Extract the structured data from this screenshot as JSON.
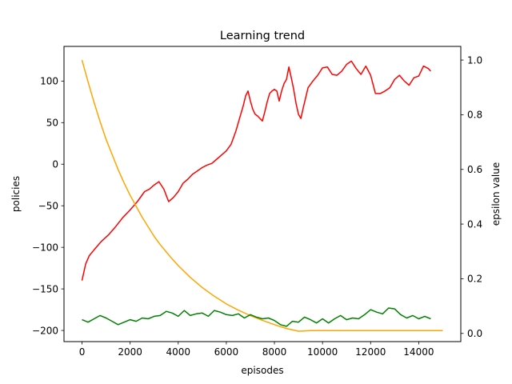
{
  "chart_data": {
    "type": "line",
    "title": "Learning trend",
    "xlabel": "episodes",
    "ylabel": "policies",
    "y2label": "epsilon value",
    "xlim": [
      -750,
      15750
    ],
    "ylim": [
      -213.4,
      141.7
    ],
    "y2lim": [
      -0.03,
      1.05
    ],
    "xticks": [
      0,
      2000,
      4000,
      6000,
      8000,
      10000,
      12000,
      14000
    ],
    "xtick_labels": [
      "0",
      "2000",
      "4000",
      "6000",
      "8000",
      "10000",
      "12000",
      "14000"
    ],
    "yticks": [
      -200,
      -150,
      -100,
      -50,
      0,
      50,
      100
    ],
    "ytick_labels": [
      "−200",
      "−150",
      "−100",
      "−50",
      "0",
      "50",
      "100"
    ],
    "y2ticks": [
      0.0,
      0.2,
      0.4,
      0.6,
      0.8,
      1.0
    ],
    "y2tick_labels": [
      "0.0",
      "0.2",
      "0.4",
      "0.6",
      "0.8",
      "1.0"
    ],
    "grid": false,
    "series": [
      {
        "axis": "left",
        "color": "#ff0000",
        "x": [
          0,
          150,
          300,
          500,
          800,
          1100,
          1400,
          1700,
          2000,
          2300,
          2600,
          2800,
          3000,
          3200,
          3400,
          3600,
          3800,
          4000,
          4200,
          4400,
          4600,
          4800,
          5000,
          5200,
          5400,
          5600,
          5800,
          6000,
          6200,
          6400,
          6500,
          6600,
          6700,
          6800,
          6900,
          7000,
          7100,
          7200,
          7300,
          7400,
          7500,
          7600,
          7700,
          7800,
          7900,
          8000,
          8100,
          8200,
          8300,
          8400,
          8500,
          8600,
          8700,
          8800,
          8900,
          9000,
          9100,
          9200,
          9300,
          9400,
          9600,
          9800,
          10000,
          10200,
          10400,
          10600,
          10800,
          11000,
          11200,
          11400,
          11600,
          11800,
          12000,
          12200,
          12400,
          12600,
          12800,
          13000,
          13200,
          13400,
          13600,
          13800,
          14000,
          14200,
          14400,
          14500
        ],
        "values": [
          -140,
          -120,
          -110,
          -103,
          -93,
          -85,
          -75,
          -64,
          -55,
          -45,
          -33,
          -30,
          -25,
          -21,
          -30,
          -45,
          -40,
          -33,
          -23,
          -18,
          -12,
          -8,
          -4,
          -1,
          1,
          6,
          11,
          16,
          24,
          40,
          50,
          60,
          70,
          82,
          88,
          76,
          66,
          60,
          58,
          55,
          52,
          63,
          75,
          85,
          88,
          90,
          88,
          76,
          88,
          97,
          102,
          117,
          104,
          90,
          73,
          60,
          55,
          68,
          80,
          92,
          100,
          107,
          116,
          117,
          108,
          107,
          112,
          120,
          124,
          115,
          108,
          118,
          107,
          85,
          85,
          88,
          92,
          102,
          107,
          100,
          95,
          104,
          106,
          118,
          115,
          112
        ]
      },
      {
        "axis": "right",
        "color": "#ffa500",
        "x": [
          0,
          250,
          500,
          750,
          1000,
          1250,
          1500,
          1750,
          2000,
          2250,
          2500,
          2750,
          3000,
          3250,
          3500,
          3750,
          4000,
          4500,
          5000,
          5500,
          6000,
          6500,
          7000,
          7500,
          8000,
          8500,
          9000,
          9500,
          10000,
          11000,
          12000,
          13000,
          14000,
          15000
        ],
        "values": [
          1.0,
          0.92,
          0.845,
          0.775,
          0.71,
          0.655,
          0.6,
          0.55,
          0.505,
          0.465,
          0.425,
          0.39,
          0.355,
          0.325,
          0.298,
          0.272,
          0.248,
          0.205,
          0.168,
          0.136,
          0.108,
          0.085,
          0.065,
          0.048,
          0.032,
          0.018,
          0.008,
          0.01,
          0.01,
          0.01,
          0.01,
          0.01,
          0.01,
          0.01
        ]
      },
      {
        "axis": "left",
        "color": "#008000",
        "x": [
          0,
          250,
          500,
          750,
          1000,
          1250,
          1500,
          1750,
          2000,
          2250,
          2500,
          2750,
          3000,
          3250,
          3500,
          3750,
          4000,
          4250,
          4500,
          4750,
          5000,
          5250,
          5500,
          5750,
          6000,
          6250,
          6500,
          6750,
          7000,
          7250,
          7500,
          7750,
          8000,
          8250,
          8500,
          8750,
          9000,
          9250,
          9500,
          9750,
          10000,
          10250,
          10500,
          10750,
          11000,
          11250,
          11500,
          11750,
          12000,
          12250,
          12500,
          12750,
          13000,
          13250,
          13500,
          13750,
          14000,
          14250,
          14500
        ],
        "values": [
          -187,
          -190,
          -186,
          -182,
          -185,
          -189,
          -193,
          -190,
          -187,
          -189,
          -185,
          -186,
          -183,
          -182,
          -177,
          -179,
          -183,
          -176,
          -182,
          -180,
          -179,
          -183,
          -176,
          -178,
          -181,
          -182,
          -180,
          -185,
          -181,
          -184,
          -186,
          -185,
          -188,
          -193,
          -195,
          -189,
          -190,
          -184,
          -187,
          -191,
          -186,
          -191,
          -186,
          -182,
          -187,
          -185,
          -186,
          -181,
          -175,
          -178,
          -180,
          -173,
          -174,
          -181,
          -185,
          -182,
          -186,
          -183,
          -186
        ]
      }
    ]
  }
}
